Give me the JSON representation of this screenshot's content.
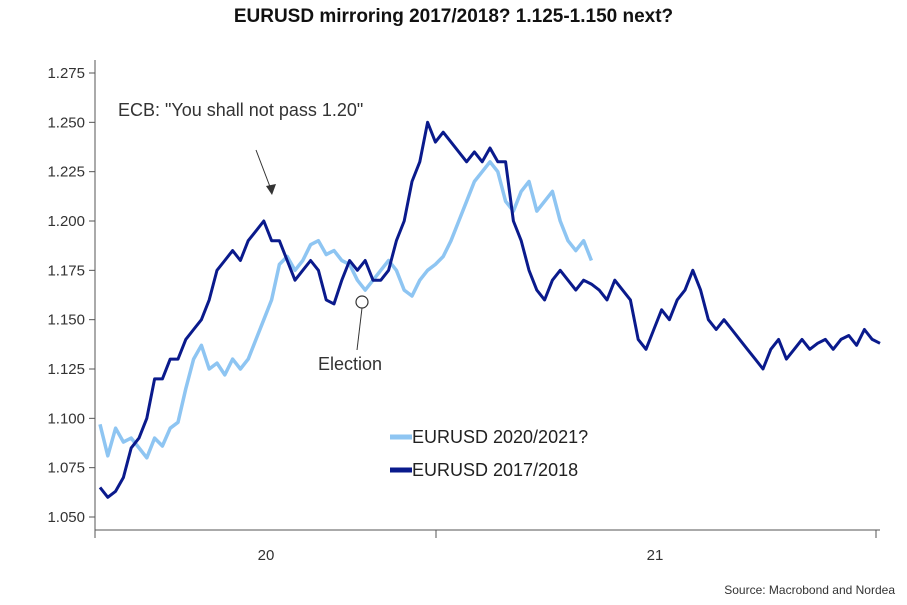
{
  "title": "EURUSD mirroring 2017/2018? 1.125-1.150 next?",
  "source": "Source: Macrobond and Nordea",
  "colors": {
    "series_2020": "#8ec5f2",
    "series_2017": "#0a1a8c",
    "axis": "#555555"
  },
  "chart_data": {
    "type": "line",
    "title": "EURUSD mirroring 2017/2018? 1.125-1.150 next?",
    "xlabel": "",
    "ylabel": "",
    "ylim": [
      1.05,
      1.275
    ],
    "yticks": [
      "1.050",
      "1.075",
      "1.100",
      "1.125",
      "1.150",
      "1.175",
      "1.200",
      "1.225",
      "1.250",
      "1.275"
    ],
    "xticks": [
      "20",
      "21"
    ],
    "grid": false,
    "legend": "bottom-center",
    "annotations": [
      {
        "text": "ECB: \"You shall not pass 1.20\""
      },
      {
        "text": "Election"
      }
    ],
    "series": [
      {
        "name": "EURUSD 2020/2021?",
        "color": "#8ec5f2",
        "x": [
          0.0,
          0.02,
          0.04,
          0.06,
          0.08,
          0.1,
          0.12,
          0.14,
          0.16,
          0.18,
          0.2,
          0.22,
          0.24,
          0.26,
          0.28,
          0.3,
          0.32,
          0.34,
          0.36,
          0.38,
          0.4,
          0.42,
          0.44,
          0.46,
          0.48,
          0.5,
          0.52,
          0.54,
          0.56,
          0.58,
          0.6,
          0.62,
          0.64,
          0.66,
          0.68,
          0.7,
          0.72,
          0.74,
          0.76,
          0.78,
          0.8,
          0.82,
          0.84,
          0.86,
          0.88,
          0.9,
          0.92,
          0.94,
          0.96,
          0.98,
          1.0,
          1.02,
          1.04,
          1.06,
          1.08,
          1.1,
          1.12,
          1.14,
          1.16,
          1.18,
          1.2,
          1.22,
          1.24,
          1.26
        ],
        "values": [
          1.097,
          1.081,
          1.095,
          1.088,
          1.09,
          1.085,
          1.08,
          1.09,
          1.086,
          1.095,
          1.098,
          1.115,
          1.13,
          1.137,
          1.125,
          1.128,
          1.122,
          1.13,
          1.125,
          1.13,
          1.14,
          1.15,
          1.16,
          1.178,
          1.182,
          1.175,
          1.18,
          1.188,
          1.19,
          1.183,
          1.185,
          1.18,
          1.178,
          1.17,
          1.165,
          1.17,
          1.175,
          1.18,
          1.175,
          1.165,
          1.162,
          1.17,
          1.175,
          1.178,
          1.182,
          1.19,
          1.2,
          1.21,
          1.22,
          1.225,
          1.23,
          1.225,
          1.21,
          1.205,
          1.215,
          1.22,
          1.205,
          1.21,
          1.215,
          1.2,
          1.19,
          1.185,
          1.19,
          1.18
        ]
      },
      {
        "name": "EURUSD 2017/2018",
        "color": "#0a1a8c",
        "x": [
          0.0,
          0.02,
          0.04,
          0.06,
          0.08,
          0.1,
          0.12,
          0.14,
          0.16,
          0.18,
          0.2,
          0.22,
          0.24,
          0.26,
          0.28,
          0.3,
          0.32,
          0.34,
          0.36,
          0.38,
          0.4,
          0.42,
          0.44,
          0.46,
          0.48,
          0.5,
          0.52,
          0.54,
          0.56,
          0.58,
          0.6,
          0.62,
          0.64,
          0.66,
          0.68,
          0.7,
          0.72,
          0.74,
          0.76,
          0.78,
          0.8,
          0.82,
          0.84,
          0.86,
          0.88,
          0.9,
          0.92,
          0.94,
          0.96,
          0.98,
          1.0,
          1.02,
          1.04,
          1.06,
          1.08,
          1.1,
          1.12,
          1.14,
          1.16,
          1.18,
          1.2,
          1.22,
          1.24,
          1.26,
          1.28,
          1.3,
          1.32,
          1.34,
          1.36,
          1.38,
          1.4,
          1.42,
          1.44,
          1.46,
          1.48,
          1.5,
          1.52,
          1.54,
          1.56,
          1.58,
          1.6,
          1.62,
          1.64,
          1.66,
          1.68,
          1.7,
          1.72,
          1.74,
          1.76,
          1.78,
          1.8,
          1.82,
          1.84,
          1.86,
          1.88,
          1.9,
          1.92,
          1.94,
          1.96,
          1.98,
          2.0
        ],
        "values": [
          1.065,
          1.06,
          1.063,
          1.07,
          1.085,
          1.09,
          1.1,
          1.12,
          1.12,
          1.13,
          1.13,
          1.14,
          1.145,
          1.15,
          1.16,
          1.175,
          1.18,
          1.185,
          1.18,
          1.19,
          1.195,
          1.2,
          1.19,
          1.19,
          1.18,
          1.17,
          1.175,
          1.18,
          1.175,
          1.16,
          1.158,
          1.17,
          1.18,
          1.175,
          1.18,
          1.17,
          1.17,
          1.175,
          1.19,
          1.2,
          1.22,
          1.23,
          1.25,
          1.24,
          1.245,
          1.24,
          1.235,
          1.23,
          1.235,
          1.23,
          1.237,
          1.23,
          1.23,
          1.2,
          1.19,
          1.175,
          1.165,
          1.16,
          1.17,
          1.175,
          1.17,
          1.165,
          1.17,
          1.168,
          1.165,
          1.16,
          1.17,
          1.165,
          1.16,
          1.14,
          1.135,
          1.145,
          1.155,
          1.15,
          1.16,
          1.165,
          1.175,
          1.165,
          1.15,
          1.145,
          1.15,
          1.145,
          1.14,
          1.135,
          1.13,
          1.125,
          1.135,
          1.14,
          1.13,
          1.135,
          1.14,
          1.135,
          1.138,
          1.14,
          1.135,
          1.14,
          1.142,
          1.137,
          1.145,
          1.14,
          1.138
        ]
      }
    ]
  }
}
